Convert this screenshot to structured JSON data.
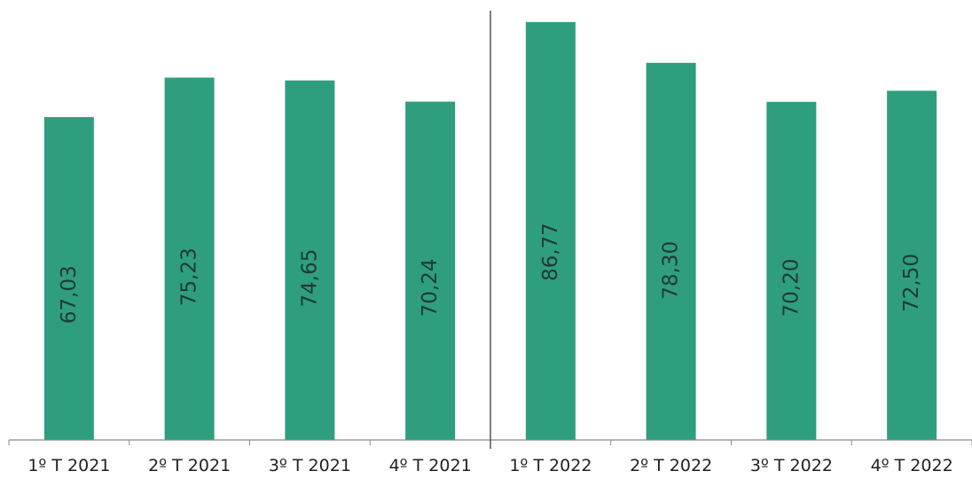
{
  "chart_data": {
    "type": "bar",
    "categories": [
      "1º T 2021",
      "2º T 2021",
      "3º T 2021",
      "4º T 2021",
      "1º T 2022",
      "2º T 2022",
      "3º T 2022",
      "4º T 2022"
    ],
    "values": [
      67.03,
      75.23,
      74.65,
      70.24,
      86.77,
      78.3,
      70.2,
      72.5
    ],
    "value_labels": [
      "67,03",
      "75,23",
      "74,65",
      "70,24",
      "86,77",
      "78,30",
      "70,20",
      "72,50"
    ],
    "title": "",
    "xlabel": "",
    "ylabel": "",
    "ylim": [
      0,
      90
    ],
    "grid": false,
    "legend": "none",
    "value_label_orientation": "vertical",
    "separator_after_category": 3,
    "colors": {
      "bar": "#2e9e7f"
    }
  }
}
